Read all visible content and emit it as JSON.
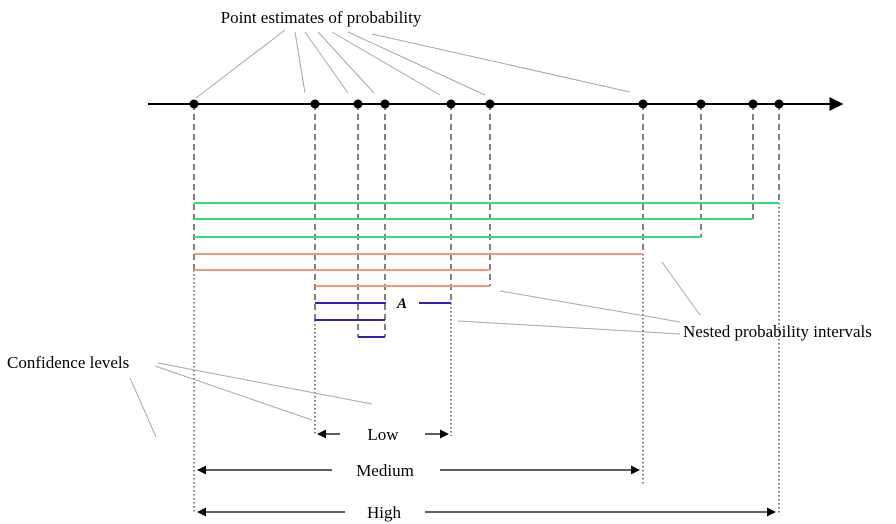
{
  "labels": {
    "point_estimates": "Point estimates of probability",
    "nested_intervals": "Nested probability intervals",
    "confidence_levels": "Confidence levels",
    "interval_a": "A",
    "level_low": "Low",
    "level_medium": "Medium",
    "level_high": "High"
  },
  "colors": {
    "axis": "#000000",
    "green_interval": "#33dd77",
    "salmon_interval": "#ee9977",
    "blue_interval": "#3322aa",
    "leader_line": "#a0a0a0"
  }
}
